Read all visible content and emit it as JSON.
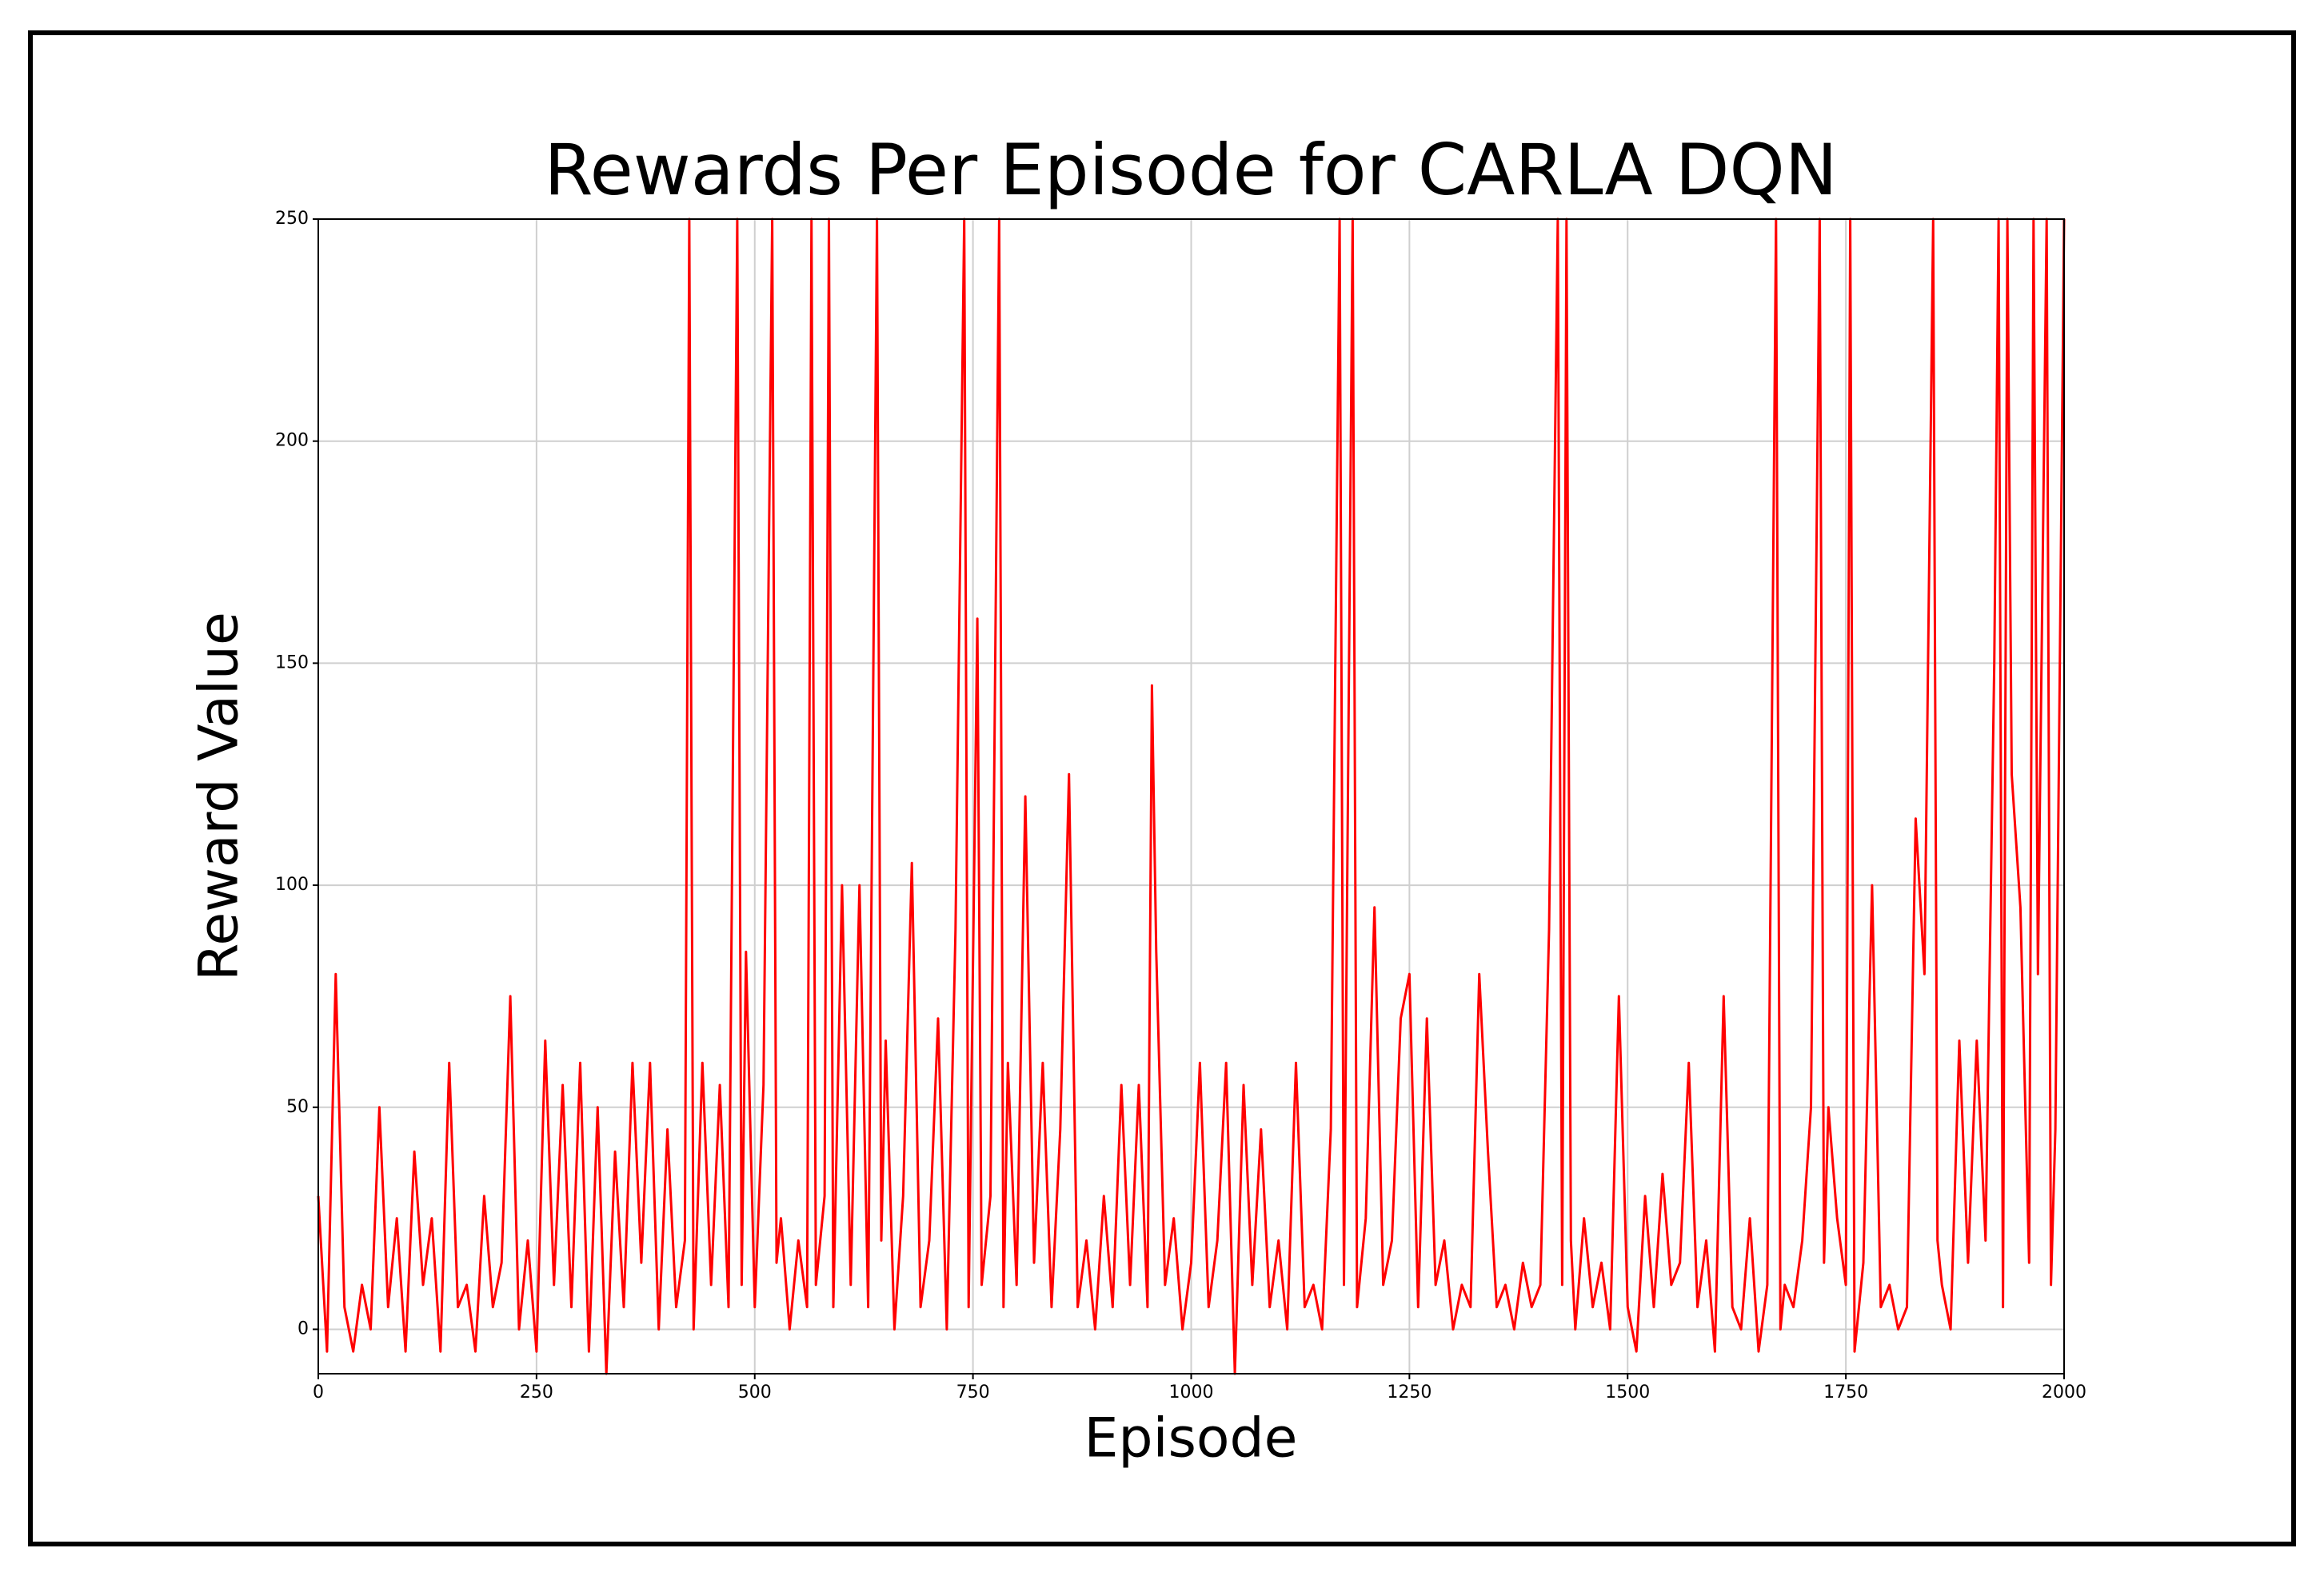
{
  "chart_data": {
    "type": "line",
    "title": "Rewards Per Episode for CARLA DQN",
    "x_label": "Episode",
    "y_label": "Reward Value",
    "x": [
      0,
      10,
      20,
      30,
      40,
      50,
      60,
      70,
      80,
      90,
      100,
      110,
      120,
      130,
      140,
      150,
      160,
      170,
      180,
      190,
      200,
      210,
      220,
      230,
      240,
      250,
      260,
      270,
      280,
      290,
      300,
      310,
      320,
      330,
      340,
      350,
      360,
      370,
      380,
      390,
      400,
      410,
      420,
      425,
      430,
      440,
      450,
      460,
      470,
      480,
      485,
      490,
      500,
      510,
      520,
      525,
      530,
      540,
      550,
      560,
      565,
      570,
      580,
      585,
      590,
      600,
      610,
      620,
      630,
      640,
      645,
      650,
      660,
      670,
      680,
      690,
      700,
      710,
      720,
      730,
      740,
      745,
      755,
      760,
      770,
      780,
      785,
      790,
      800,
      810,
      820,
      830,
      840,
      850,
      860,
      870,
      880,
      890,
      900,
      910,
      920,
      930,
      940,
      950,
      955,
      960,
      970,
      980,
      990,
      1000,
      1010,
      1020,
      1030,
      1040,
      1050,
      1060,
      1070,
      1080,
      1090,
      1100,
      1110,
      1120,
      1130,
      1140,
      1150,
      1160,
      1170,
      1175,
      1185,
      1190,
      1200,
      1210,
      1220,
      1230,
      1240,
      1250,
      1260,
      1270,
      1280,
      1290,
      1300,
      1310,
      1320,
      1330,
      1340,
      1350,
      1360,
      1370,
      1380,
      1390,
      1400,
      1410,
      1420,
      1425,
      1430,
      1435,
      1440,
      1450,
      1460,
      1470,
      1480,
      1490,
      1500,
      1510,
      1520,
      1530,
      1540,
      1550,
      1560,
      1570,
      1580,
      1590,
      1600,
      1610,
      1620,
      1630,
      1640,
      1650,
      1660,
      1670,
      1675,
      1680,
      1690,
      1700,
      1710,
      1720,
      1725,
      1730,
      1740,
      1750,
      1755,
      1760,
      1770,
      1780,
      1790,
      1800,
      1810,
      1820,
      1830,
      1840,
      1850,
      1855,
      1860,
      1870,
      1880,
      1890,
      1900,
      1910,
      1920,
      1925,
      1930,
      1935,
      1940,
      1950,
      1960,
      1965,
      1970,
      1980,
      1985,
      1990,
      2000
    ],
    "series": [
      {
        "color": "#ff0000",
        "values": [
          30,
          -5,
          80,
          5,
          -5,
          10,
          0,
          50,
          5,
          25,
          -5,
          40,
          10,
          25,
          -5,
          60,
          5,
          10,
          -5,
          30,
          5,
          15,
          75,
          0,
          20,
          -5,
          65,
          10,
          55,
          5,
          60,
          -5,
          50,
          -10,
          40,
          5,
          60,
          15,
          60,
          0,
          45,
          5,
          20,
          250,
          0,
          60,
          10,
          55,
          5,
          250,
          10,
          85,
          5,
          55,
          250,
          15,
          25,
          0,
          20,
          5,
          250,
          10,
          30,
          250,
          5,
          100,
          10,
          100,
          5,
          250,
          20,
          65,
          0,
          30,
          105,
          5,
          20,
          70,
          0,
          90,
          250,
          5,
          160,
          10,
          30,
          250,
          5,
          60,
          10,
          120,
          15,
          60,
          5,
          45,
          125,
          5,
          20,
          0,
          30,
          5,
          55,
          10,
          55,
          5,
          145,
          85,
          10,
          25,
          0,
          15,
          60,
          5,
          20,
          60,
          -10,
          55,
          10,
          45,
          5,
          20,
          0,
          60,
          5,
          10,
          0,
          45,
          250,
          10,
          250,
          5,
          25,
          95,
          10,
          20,
          70,
          80,
          5,
          70,
          10,
          20,
          0,
          10,
          5,
          80,
          40,
          5,
          10,
          0,
          15,
          5,
          10,
          90,
          250,
          10,
          250,
          20,
          0,
          25,
          5,
          15,
          0,
          75,
          5,
          -5,
          30,
          5,
          35,
          10,
          15,
          60,
          5,
          20,
          -5,
          75,
          5,
          0,
          25,
          -5,
          10,
          250,
          0,
          10,
          5,
          20,
          50,
          250,
          15,
          50,
          25,
          10,
          250,
          -5,
          15,
          100,
          5,
          10,
          0,
          5,
          115,
          80,
          250,
          20,
          10,
          0,
          65,
          15,
          65,
          20,
          150,
          250,
          5,
          250,
          125,
          95,
          15,
          250,
          80,
          250,
          10,
          45,
          250
        ]
      }
    ],
    "xlim": [
      0,
      2000
    ],
    "ylim": [
      -10,
      250
    ],
    "xticks": [
      0,
      250,
      500,
      750,
      1000,
      1250,
      1500,
      1750,
      2000
    ],
    "yticks": [
      0,
      50,
      100,
      150,
      200,
      250
    ],
    "grid": true
  }
}
